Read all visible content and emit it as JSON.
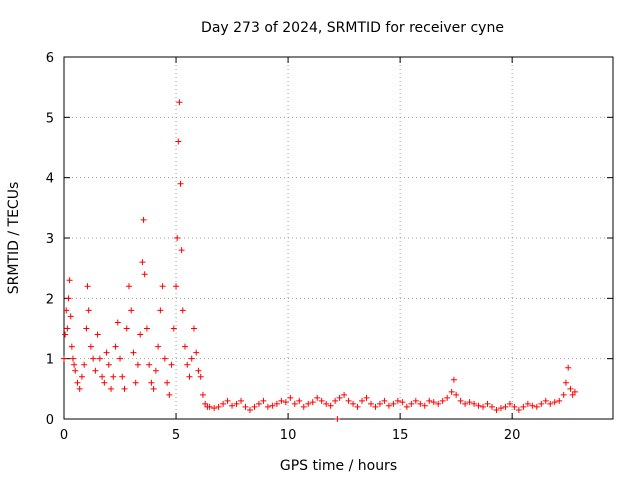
{
  "chart_data": {
    "type": "scatter",
    "title": "Day 273 of 2024, SRMTID for receiver cyne",
    "xlabel": "GPS time / hours",
    "ylabel": "SRMTID / TECUs",
    "xlim": [
      0,
      24.5
    ],
    "ylim": [
      0,
      6
    ],
    "xticks": [
      0,
      5,
      10,
      15,
      20
    ],
    "yticks": [
      0,
      1,
      2,
      3,
      4,
      5,
      6
    ],
    "grid": true,
    "marker": "+",
    "color": "#ff0000",
    "series": [
      {
        "name": "SRMTID",
        "x": [
          0.0,
          0.05,
          0.1,
          0.15,
          0.2,
          0.25,
          0.3,
          0.35,
          0.4,
          0.45,
          0.5,
          0.6,
          0.7,
          0.8,
          0.9,
          1.0,
          1.05,
          1.1,
          1.2,
          1.3,
          1.4,
          1.5,
          1.6,
          1.7,
          1.8,
          1.9,
          2.0,
          2.1,
          2.2,
          2.3,
          2.4,
          2.5,
          2.6,
          2.7,
          2.8,
          2.9,
          3.0,
          3.1,
          3.2,
          3.3,
          3.4,
          3.5,
          3.55,
          3.6,
          3.7,
          3.8,
          3.9,
          4.0,
          4.1,
          4.2,
          4.3,
          4.4,
          4.5,
          4.6,
          4.7,
          4.8,
          4.9,
          5.0,
          5.05,
          5.1,
          5.15,
          5.2,
          5.25,
          5.3,
          5.4,
          5.5,
          5.6,
          5.7,
          5.8,
          5.9,
          6.0,
          6.1,
          6.2,
          6.3,
          6.4,
          6.5,
          6.7,
          6.9,
          7.1,
          7.3,
          7.5,
          7.7,
          7.9,
          8.1,
          8.3,
          8.5,
          8.7,
          8.9,
          9.1,
          9.3,
          9.5,
          9.7,
          9.9,
          10.1,
          10.3,
          10.5,
          10.7,
          10.9,
          11.1,
          11.3,
          11.5,
          11.7,
          11.9,
          12.1,
          12.2,
          12.3,
          12.5,
          12.7,
          12.9,
          13.1,
          13.3,
          13.5,
          13.7,
          13.9,
          14.1,
          14.3,
          14.5,
          14.7,
          14.9,
          15.1,
          15.3,
          15.5,
          15.7,
          15.9,
          16.1,
          16.3,
          16.5,
          16.7,
          16.9,
          17.1,
          17.3,
          17.4,
          17.5,
          17.7,
          17.9,
          18.1,
          18.3,
          18.5,
          18.7,
          18.9,
          19.1,
          19.3,
          19.5,
          19.7,
          19.9,
          20.1,
          20.3,
          20.5,
          20.7,
          20.9,
          21.1,
          21.3,
          21.5,
          21.7,
          21.9,
          22.1,
          22.3,
          22.4,
          22.5,
          22.6,
          22.7,
          22.8
        ],
        "y": [
          1.0,
          1.4,
          1.8,
          1.5,
          2.0,
          2.3,
          1.7,
          1.2,
          1.0,
          0.9,
          0.8,
          0.6,
          0.5,
          0.7,
          0.9,
          1.5,
          2.2,
          1.8,
          1.2,
          1.0,
          0.8,
          1.4,
          1.0,
          0.7,
          0.6,
          1.1,
          0.9,
          0.5,
          0.7,
          1.2,
          1.6,
          1.0,
          0.7,
          0.5,
          1.5,
          2.2,
          1.8,
          1.1,
          0.6,
          0.9,
          1.4,
          2.6,
          3.3,
          2.4,
          1.5,
          0.9,
          0.6,
          0.5,
          0.8,
          1.2,
          1.8,
          2.2,
          1.0,
          0.6,
          0.4,
          0.9,
          1.5,
          2.2,
          3.0,
          4.6,
          5.25,
          3.9,
          2.8,
          1.8,
          1.2,
          0.9,
          0.7,
          1.0,
          1.5,
          1.1,
          0.8,
          0.7,
          0.4,
          0.25,
          0.2,
          0.2,
          0.18,
          0.2,
          0.25,
          0.3,
          0.22,
          0.25,
          0.3,
          0.2,
          0.15,
          0.2,
          0.25,
          0.3,
          0.2,
          0.22,
          0.25,
          0.3,
          0.28,
          0.35,
          0.25,
          0.3,
          0.2,
          0.25,
          0.28,
          0.35,
          0.3,
          0.25,
          0.22,
          0.3,
          0.0,
          0.35,
          0.4,
          0.3,
          0.25,
          0.2,
          0.3,
          0.35,
          0.25,
          0.2,
          0.25,
          0.3,
          0.22,
          0.25,
          0.3,
          0.28,
          0.2,
          0.25,
          0.3,
          0.25,
          0.22,
          0.3,
          0.28,
          0.25,
          0.3,
          0.35,
          0.45,
          0.65,
          0.4,
          0.3,
          0.25,
          0.28,
          0.25,
          0.22,
          0.2,
          0.25,
          0.2,
          0.15,
          0.18,
          0.2,
          0.25,
          0.2,
          0.15,
          0.2,
          0.25,
          0.22,
          0.2,
          0.25,
          0.3,
          0.25,
          0.28,
          0.3,
          0.4,
          0.6,
          0.85,
          0.5,
          0.4,
          0.45
        ]
      }
    ]
  }
}
